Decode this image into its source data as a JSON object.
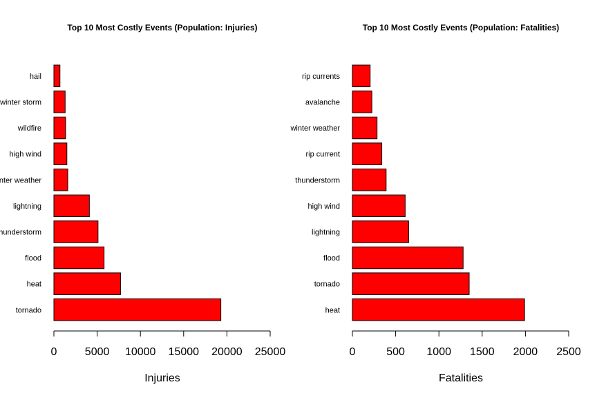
{
  "chart_data": [
    {
      "type": "bar",
      "orientation": "horizontal",
      "title": "Top 10 Most Costly Events (Population: Injuries)",
      "xlabel": "Injuries",
      "ylabel": "",
      "xlim": [
        0,
        25000
      ],
      "xticks": [
        0,
        5000,
        10000,
        15000,
        20000,
        25000
      ],
      "xtick_labels": [
        "0",
        "5000",
        "10000",
        "15000",
        "20000",
        "25000"
      ],
      "categories": [
        "tornado",
        "heat",
        "flood",
        "thunderstorm",
        "lightning",
        "winter weather",
        "high wind",
        "wildfire",
        "winter storm",
        "hail"
      ],
      "category_labels": [
        "tornado",
        "heat",
        "flood",
        "thunderstorm",
        "lightning",
        "inter weather",
        "high wind",
        "wildfire",
        "winter storm",
        "hail"
      ],
      "values": [
        19300,
        7700,
        5800,
        5100,
        4100,
        1600,
        1500,
        1350,
        1300,
        700
      ],
      "bar_color": "#ff0000",
      "edge_color": "#000000",
      "grid": false
    },
    {
      "type": "bar",
      "orientation": "horizontal",
      "title": "Top 10 Most Costly Events (Population: Fatalities)",
      "xlabel": "Fatalities",
      "ylabel": "",
      "xlim": [
        0,
        2500
      ],
      "xticks": [
        0,
        500,
        1000,
        1500,
        2000,
        2500
      ],
      "xtick_labels": [
        "0",
        "500",
        "1000",
        "1500",
        "2000",
        "2500"
      ],
      "categories": [
        "heat",
        "tornado",
        "flood",
        "lightning",
        "high wind",
        "thunderstorm",
        "rip current",
        "winter weather",
        "avalanche",
        "rip currents"
      ],
      "category_labels": [
        "heat",
        "tornado",
        "flood",
        "lightning",
        "high wind",
        "thunderstorm",
        "rip current",
        "winter weather",
        "avalanche",
        "rip currents"
      ],
      "values": [
        1990,
        1350,
        1280,
        650,
        610,
        390,
        340,
        285,
        225,
        205
      ],
      "bar_color": "#ff0000",
      "edge_color": "#000000",
      "grid": false
    }
  ]
}
